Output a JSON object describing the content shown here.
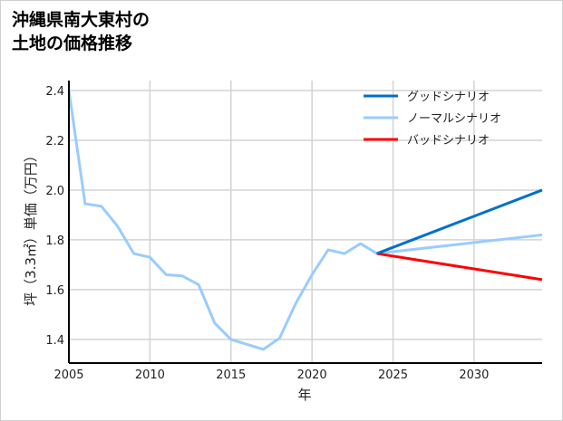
{
  "title_lines": [
    "沖縄県南大東村の",
    "土地の価格推移"
  ],
  "chart_data": {
    "type": "line",
    "title": "沖縄県南大東村の土地の価格推移",
    "xlabel": "年",
    "ylabel": "坪（3.3㎡）単価（万円）",
    "xlim": [
      2005,
      2034.2
    ],
    "ylim": [
      1.305,
      2.44
    ],
    "xticks": [
      2005,
      2010,
      2015,
      2020,
      2025,
      2030
    ],
    "yticks": [
      1.4,
      1.6,
      1.8,
      2.0,
      2.2,
      2.4
    ],
    "ytick_labels": [
      "1.4",
      "1.6",
      "1.8",
      "2.0",
      "2.2",
      "2.4"
    ],
    "grid": true,
    "legend_position": "top-right",
    "series": [
      {
        "name": "グッドシナリオ",
        "color": "#0070cc",
        "x": [
          2024,
          2034.2
        ],
        "y": [
          1.745,
          2.0
        ]
      },
      {
        "name": "ノーマルシナリオ",
        "color": "#99ccff",
        "x": [
          2005,
          2006,
          2007,
          2008,
          2009,
          2010,
          2011,
          2012,
          2013,
          2014,
          2015,
          2016,
          2017,
          2018,
          2019,
          2020,
          2021,
          2022,
          2023,
          2024,
          2034.2
        ],
        "y": [
          2.4,
          1.945,
          1.935,
          1.855,
          1.745,
          1.73,
          1.66,
          1.655,
          1.62,
          1.465,
          1.4,
          1.38,
          1.36,
          1.405,
          1.545,
          1.66,
          1.76,
          1.745,
          1.785,
          1.745,
          1.82
        ]
      },
      {
        "name": "バッドシナリオ",
        "color": "#ff0000",
        "x": [
          2024,
          2034.2
        ],
        "y": [
          1.745,
          1.64
        ]
      }
    ]
  }
}
